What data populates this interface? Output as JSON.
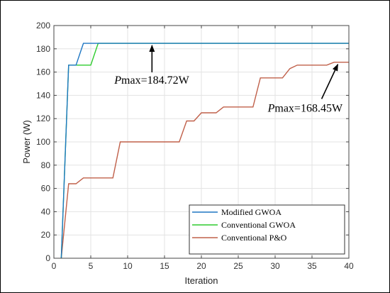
{
  "chart_data": {
    "type": "line",
    "xlabel": "Iteration",
    "ylabel": "Power (W)",
    "xlim": [
      0,
      40
    ],
    "ylim": [
      0,
      200
    ],
    "xticks": [
      0,
      5,
      10,
      15,
      20,
      25,
      30,
      35,
      40
    ],
    "yticks": [
      0,
      20,
      40,
      60,
      80,
      100,
      120,
      140,
      160,
      180,
      200
    ],
    "grid": true,
    "legend_position": "bottom-right",
    "series": [
      {
        "name": "Modified GWOA",
        "color": "#1f77c4",
        "points": [
          [
            1,
            0
          ],
          [
            2,
            166
          ],
          [
            3,
            166
          ],
          [
            4,
            184.72
          ],
          [
            40,
            184.72
          ]
        ]
      },
      {
        "name": "Conventional GWOA",
        "color": "#2ecc2e",
        "points": [
          [
            1,
            0
          ],
          [
            2,
            166
          ],
          [
            3,
            166
          ],
          [
            5,
            166
          ],
          [
            6,
            184.72
          ],
          [
            40,
            184.72
          ]
        ]
      },
      {
        "name": "Conventional P&O",
        "color": "#c0604a",
        "points": [
          [
            1,
            0
          ],
          [
            2,
            64
          ],
          [
            3,
            64
          ],
          [
            4,
            69
          ],
          [
            8,
            69
          ],
          [
            9,
            100
          ],
          [
            17,
            100
          ],
          [
            18,
            118
          ],
          [
            19,
            118
          ],
          [
            20,
            125
          ],
          [
            22,
            125
          ],
          [
            23,
            130
          ],
          [
            27,
            130
          ],
          [
            28,
            155
          ],
          [
            31,
            155
          ],
          [
            32,
            163
          ],
          [
            33,
            166
          ],
          [
            37,
            166
          ],
          [
            38,
            168.45
          ],
          [
            40,
            168.45
          ]
        ]
      }
    ],
    "annotations": [
      {
        "prefix": "P",
        "text": "max=184.72W",
        "x_text": 8.2,
        "y_text": 150,
        "arrow_to": [
          13.3,
          184.72
        ]
      },
      {
        "prefix": "P",
        "text": "max=168.45W",
        "x_text": 29.0,
        "y_text": 126,
        "arrow_to": [
          38.5,
          168.45
        ]
      }
    ]
  }
}
